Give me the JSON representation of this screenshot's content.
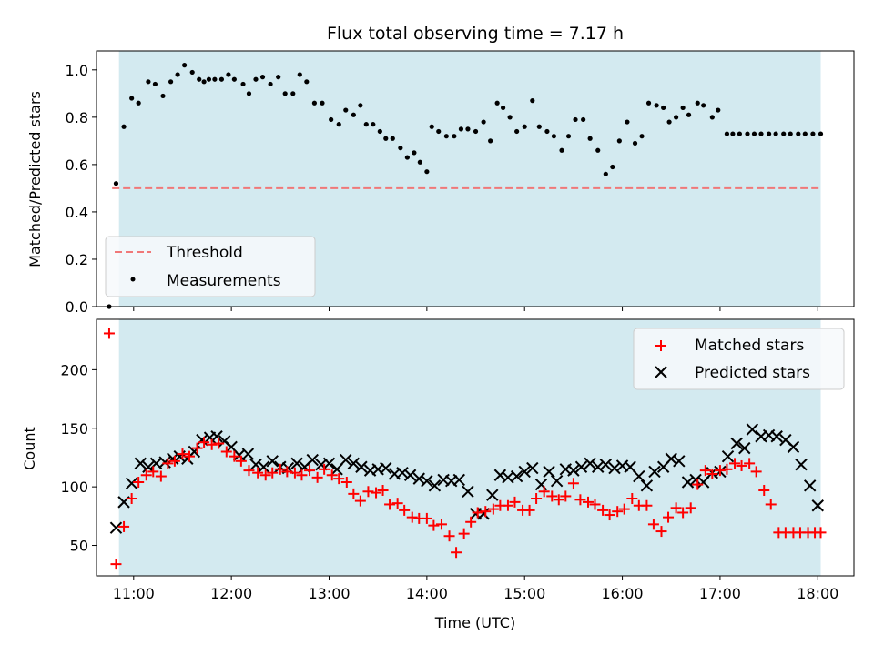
{
  "chart_data": [
    {
      "type": "scatter",
      "title": "Flux total observing time = 7.17 h",
      "xlabel": "",
      "ylabel": "Matched/Predicted stars",
      "xlim": [
        10.62,
        18.37
      ],
      "ylim": [
        0.0,
        1.08
      ],
      "yticks": [
        0.0,
        0.2,
        0.4,
        0.6,
        0.8,
        1.0
      ],
      "ytick_labels": [
        "0.0",
        "0.2",
        "0.4",
        "0.6",
        "0.8",
        "1.0"
      ],
      "shaded_interval": [
        10.85,
        18.03
      ],
      "shade_color": "#d3eaf0",
      "threshold": {
        "name": "Threshold",
        "y": 0.5,
        "x": [
          10.78,
          18.03
        ],
        "color": "#f07878"
      },
      "legend_position": "lower-left",
      "series": [
        {
          "name": "Measurements",
          "color": "#000000",
          "x": [
            10.75,
            10.82,
            10.9,
            10.98,
            11.05,
            11.15,
            11.22,
            11.3,
            11.38,
            11.45,
            11.52,
            11.6,
            11.67,
            11.72,
            11.77,
            11.83,
            11.9,
            11.97,
            12.03,
            12.12,
            12.18,
            12.25,
            12.32,
            12.4,
            12.48,
            12.55,
            12.63,
            12.7,
            12.77,
            12.85,
            12.93,
            13.02,
            13.1,
            13.17,
            13.25,
            13.32,
            13.38,
            13.45,
            13.52,
            13.58,
            13.65,
            13.73,
            13.8,
            13.87,
            13.93,
            14.0,
            14.05,
            14.12,
            14.2,
            14.28,
            14.35,
            14.42,
            14.5,
            14.58,
            14.65,
            14.72,
            14.78,
            14.85,
            14.92,
            15.0,
            15.08,
            15.15,
            15.23,
            15.3,
            15.38,
            15.45,
            15.52,
            15.6,
            15.67,
            15.75,
            15.83,
            15.9,
            15.97,
            16.05,
            16.13,
            16.2,
            16.27,
            16.35,
            16.42,
            16.48,
            16.55,
            16.62,
            16.68,
            16.77,
            16.83,
            16.92,
            16.98,
            17.07,
            17.13,
            17.2,
            17.28,
            17.35,
            17.42,
            17.5,
            17.57,
            17.65,
            17.72,
            17.8,
            17.87,
            17.95,
            18.03
          ],
          "y": [
            0.0,
            0.52,
            0.76,
            0.88,
            0.86,
            0.95,
            0.94,
            0.89,
            0.95,
            0.98,
            1.02,
            0.99,
            0.96,
            0.95,
            0.96,
            0.96,
            0.96,
            0.98,
            0.96,
            0.94,
            0.9,
            0.96,
            0.97,
            0.94,
            0.97,
            0.9,
            0.9,
            0.98,
            0.95,
            0.86,
            0.86,
            0.79,
            0.77,
            0.83,
            0.81,
            0.85,
            0.77,
            0.77,
            0.74,
            0.71,
            0.71,
            0.67,
            0.63,
            0.65,
            0.61,
            0.57,
            0.76,
            0.74,
            0.72,
            0.72,
            0.75,
            0.75,
            0.74,
            0.78,
            0.7,
            0.86,
            0.84,
            0.8,
            0.74,
            0.76,
            0.87,
            0.76,
            0.74,
            0.72,
            0.66,
            0.72,
            0.79,
            0.79,
            0.71,
            0.66,
            0.56,
            0.59,
            0.7,
            0.78,
            0.69,
            0.72,
            0.86,
            0.85,
            0.84,
            0.78,
            0.8,
            0.84,
            0.81,
            0.86,
            0.85,
            0.8,
            0.83,
            0.73,
            0.73,
            0.73,
            0.73,
            0.73,
            0.73,
            0.73,
            0.73,
            0.73,
            0.73,
            0.73,
            0.73,
            0.73,
            0.73
          ]
        }
      ]
    },
    {
      "type": "scatter",
      "title": "",
      "xlabel": "Time (UTC)",
      "ylabel": "Count",
      "xlim": [
        10.62,
        18.37
      ],
      "ylim": [
        24,
        243
      ],
      "yticks": [
        50,
        100,
        150,
        200
      ],
      "ytick_labels": [
        "50",
        "100",
        "150",
        "200"
      ],
      "xticks": [
        11,
        12,
        13,
        14,
        15,
        16,
        17,
        18
      ],
      "xtick_labels": [
        "11:00",
        "12:00",
        "13:00",
        "14:00",
        "15:00",
        "16:00",
        "17:00",
        "18:00"
      ],
      "shaded_interval": [
        10.85,
        18.03
      ],
      "legend_position": "upper-right",
      "series": [
        {
          "name": "Matched stars",
          "marker": "+",
          "color": "#ff0000",
          "x": [
            10.75,
            10.82,
            10.9,
            10.98,
            11.05,
            11.13,
            11.2,
            11.28,
            11.35,
            11.42,
            11.5,
            11.57,
            11.65,
            11.72,
            11.8,
            11.87,
            11.95,
            12.03,
            12.1,
            12.18,
            12.27,
            12.35,
            12.42,
            12.5,
            12.57,
            12.65,
            12.72,
            12.8,
            12.88,
            12.95,
            13.03,
            13.1,
            13.18,
            13.25,
            13.32,
            13.4,
            13.48,
            13.55,
            13.62,
            13.7,
            13.77,
            13.85,
            13.92,
            14.0,
            14.07,
            14.15,
            14.23,
            14.3,
            14.38,
            14.45,
            14.52,
            14.6,
            14.68,
            14.75,
            14.83,
            14.9,
            14.98,
            15.05,
            15.12,
            15.2,
            15.28,
            15.35,
            15.42,
            15.5,
            15.57,
            15.65,
            15.72,
            15.8,
            15.87,
            15.95,
            16.02,
            16.1,
            16.17,
            16.25,
            16.32,
            16.4,
            16.47,
            16.55,
            16.62,
            16.7,
            16.77,
            16.85,
            16.92,
            17.0,
            17.07,
            17.15,
            17.22,
            17.3,
            17.37,
            17.45,
            17.52,
            17.6,
            17.67,
            17.75,
            17.82,
            17.9,
            17.97,
            18.03
          ],
          "y": [
            231,
            34,
            66,
            90,
            104,
            110,
            113,
            109,
            120,
            122,
            128,
            126,
            133,
            138,
            136,
            137,
            130,
            126,
            122,
            114,
            112,
            110,
            112,
            115,
            113,
            112,
            110,
            114,
            108,
            115,
            110,
            107,
            104,
            94,
            88,
            96,
            95,
            97,
            85,
            86,
            80,
            74,
            73,
            73,
            67,
            68,
            58,
            44,
            60,
            70,
            78,
            79,
            81,
            84,
            84,
            87,
            80,
            80,
            90,
            96,
            92,
            89,
            92,
            103,
            89,
            87,
            85,
            80,
            76,
            79,
            81,
            90,
            84,
            84,
            68,
            62,
            74,
            82,
            78,
            82,
            102,
            114,
            111,
            114,
            115,
            120,
            118,
            120,
            113,
            97,
            85,
            61,
            61,
            61,
            61,
            61,
            61,
            61
          ]
        },
        {
          "name": "Predicted stars",
          "marker": "x",
          "color": "#000000",
          "x": [
            10.82,
            10.9,
            10.98,
            11.07,
            11.15,
            11.23,
            11.32,
            11.4,
            11.47,
            11.55,
            11.62,
            11.7,
            11.78,
            11.85,
            11.93,
            12.0,
            12.08,
            12.17,
            12.25,
            12.33,
            12.42,
            12.5,
            12.58,
            12.67,
            12.75,
            12.83,
            12.92,
            13.0,
            13.08,
            13.17,
            13.25,
            13.33,
            13.42,
            13.5,
            13.58,
            13.67,
            13.75,
            13.83,
            13.92,
            14.0,
            14.08,
            14.17,
            14.25,
            14.33,
            14.42,
            14.5,
            14.58,
            14.67,
            14.75,
            14.83,
            14.92,
            15.0,
            15.08,
            15.17,
            15.25,
            15.33,
            15.42,
            15.5,
            15.58,
            15.67,
            15.75,
            15.83,
            15.92,
            16.0,
            16.08,
            16.17,
            16.25,
            16.33,
            16.42,
            16.5,
            16.58,
            16.67,
            16.75,
            16.83,
            16.92,
            17.0,
            17.08,
            17.17,
            17.25,
            17.33,
            17.42,
            17.5,
            17.58,
            17.67,
            17.75,
            17.83,
            17.92,
            18.0
          ],
          "y": [
            65,
            87,
            103,
            120,
            117,
            120,
            121,
            124,
            126,
            124,
            130,
            140,
            142,
            143,
            139,
            134,
            127,
            128,
            119,
            117,
            122,
            117,
            116,
            120,
            117,
            123,
            119,
            120,
            115,
            123,
            120,
            117,
            114,
            115,
            116,
            111,
            112,
            110,
            107,
            105,
            101,
            106,
            105,
            106,
            96,
            77,
            77,
            93,
            110,
            108,
            109,
            113,
            116,
            102,
            113,
            105,
            115,
            114,
            117,
            120,
            117,
            119,
            116,
            118,
            117,
            109,
            101,
            113,
            117,
            124,
            122,
            104,
            106,
            104,
            112,
            113,
            126,
            137,
            133,
            149,
            143,
            144,
            143,
            140,
            134,
            119,
            101,
            84
          ]
        }
      ]
    }
  ]
}
